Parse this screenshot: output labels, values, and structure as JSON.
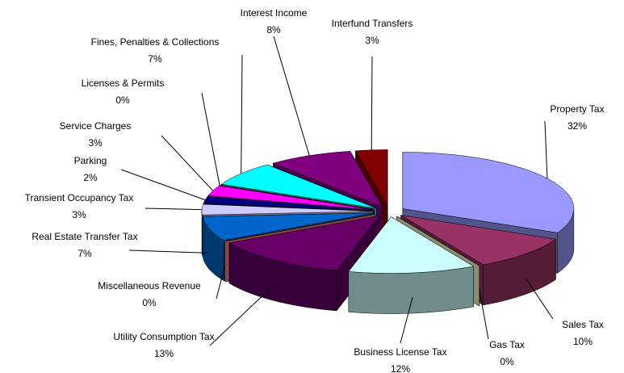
{
  "chart_data": {
    "type": "pie3d",
    "categories": [
      "Property Tax",
      "Sales Tax",
      "Gas Tax",
      "Business License Tax",
      "Utility Consumption Tax",
      "Miscellaneous Revenue",
      "Real Estate Transfer Tax",
      "Transient Occupancy Tax",
      "Parking",
      "Service Charges",
      "Licenses & Permits",
      "Fines, Penalties & Collections",
      "Interest Income",
      "Interfund Transfers"
    ],
    "values": [
      32,
      10,
      0,
      12,
      13,
      0,
      7,
      3,
      2,
      3,
      0,
      7,
      8,
      3
    ],
    "value_labels": [
      "32%",
      "10%",
      "0%",
      "12%",
      "13%",
      "0%",
      "7%",
      "3%",
      "2%",
      "3%",
      "0%",
      "7%",
      "8%",
      "3%"
    ],
    "colors": [
      "#9999ff",
      "#993366",
      "#ffffcc",
      "#ccffff",
      "#660066",
      "#ff8080",
      "#0066cc",
      "#ccccff",
      "#000080",
      "#ff00ff",
      "#ffff00",
      "#00ffff",
      "#800080",
      "#800000"
    ]
  }
}
